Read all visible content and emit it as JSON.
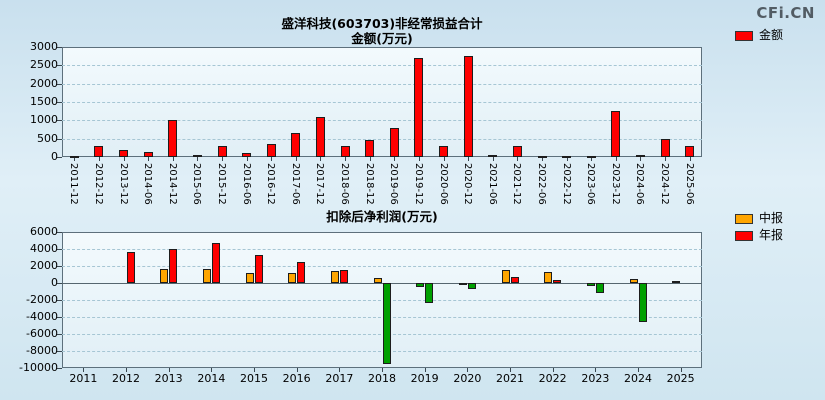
{
  "page": {
    "logo": "CFi.CN"
  },
  "chart_data": [
    {
      "type": "bar",
      "title_lines": [
        "盛洋科技(603703)非经常损益合计",
        "金额(万元)"
      ],
      "legend": [
        {
          "label": "金额",
          "color": "#ff0000"
        }
      ],
      "ylim": [
        0,
        3000
      ],
      "yticks": [
        0,
        500,
        1000,
        1500,
        2000,
        2500,
        3000
      ],
      "grid": true,
      "legend_position": "right",
      "categories": [
        "2011-12",
        "2012-12",
        "2013-12",
        "2014-06",
        "2014-12",
        "2015-06",
        "2015-12",
        "2016-06",
        "2016-12",
        "2017-06",
        "2017-12",
        "2018-06",
        "2018-12",
        "2019-06",
        "2019-12",
        "2020-06",
        "2020-12",
        "2021-06",
        "2021-12",
        "2022-06",
        "2022-12",
        "2023-06",
        "2023-12",
        "2024-06",
        "2024-12",
        "2025-06"
      ],
      "series": [
        {
          "name": "金额",
          "color": "#ff0000",
          "values": [
            30,
            300,
            190,
            140,
            1000,
            60,
            290,
            110,
            350,
            650,
            1100,
            290,
            460,
            800,
            2700,
            300,
            2760,
            60,
            300,
            40,
            30,
            30,
            1250,
            60,
            500,
            290
          ]
        }
      ]
    },
    {
      "type": "bar",
      "title": "扣除后净利润(万元)",
      "legend": [
        {
          "label": "中报",
          "color": "#ffa500"
        },
        {
          "label": "年报",
          "color": "#ff0000"
        }
      ],
      "negative_color": "#00a000",
      "ylim": [
        -10000,
        6000
      ],
      "yticks": [
        -10000,
        -8000,
        -6000,
        -4000,
        -2000,
        0,
        2000,
        4000,
        6000
      ],
      "grid": true,
      "legend_position": "right",
      "categories": [
        "2011",
        "2012",
        "2013",
        "2014",
        "2015",
        "2016",
        "2017",
        "2018",
        "2019",
        "2020",
        "2021",
        "2022",
        "2023",
        "2024",
        "2025"
      ],
      "series": [
        {
          "name": "中报",
          "color": "#ffa500",
          "values": [
            null,
            null,
            1700,
            1600,
            1150,
            1200,
            1450,
            600,
            -500,
            -250,
            1500,
            1300,
            -400,
            500,
            200
          ]
        },
        {
          "name": "年报",
          "color": "#ff0000",
          "values": [
            null,
            3700,
            3950,
            4700,
            3300,
            2450,
            1520,
            -9500,
            -2300,
            -750,
            700,
            400,
            -1200,
            -4600,
            null
          ]
        }
      ]
    }
  ]
}
